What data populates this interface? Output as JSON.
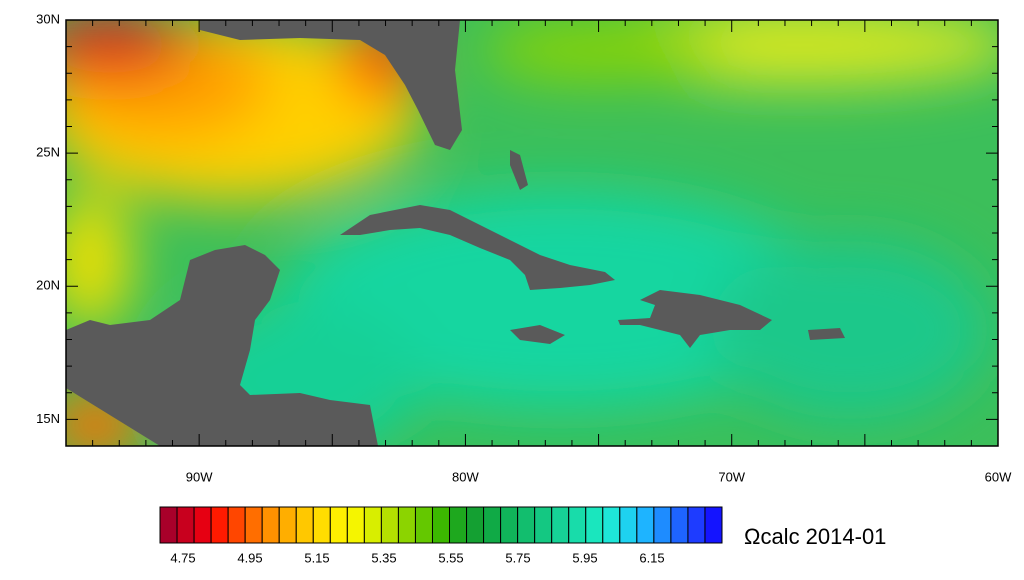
{
  "map": {
    "title": "Ωcalc 2014-01",
    "x_ticks": [
      "90W",
      "80W",
      "70W",
      "60W"
    ],
    "y_ticks": [
      "30N",
      "25N",
      "20N",
      "15N"
    ],
    "colorbar": {
      "colors": [
        "#a8002a",
        "#c8001e",
        "#e60012",
        "#ff1a00",
        "#ff4600",
        "#ff6e00",
        "#ff9100",
        "#ffae00",
        "#ffc800",
        "#ffdd00",
        "#fff000",
        "#f5f500",
        "#d8ee00",
        "#b4e000",
        "#8cd400",
        "#64c800",
        "#3cb800",
        "#1ea81e",
        "#14a032",
        "#10aa46",
        "#10b45a",
        "#12be6e",
        "#14c882",
        "#16d296",
        "#18dcaa",
        "#1ae6be",
        "#1ee6d8",
        "#1ed2f0",
        "#1eb4ff",
        "#1e8cff",
        "#1e64ff",
        "#1e3cff",
        "#1414ff"
      ],
      "labels": [
        "4.75",
        "4.95",
        "5.15",
        "5.35",
        "5.55",
        "5.75",
        "5.95",
        "6.15"
      ]
    }
  }
}
